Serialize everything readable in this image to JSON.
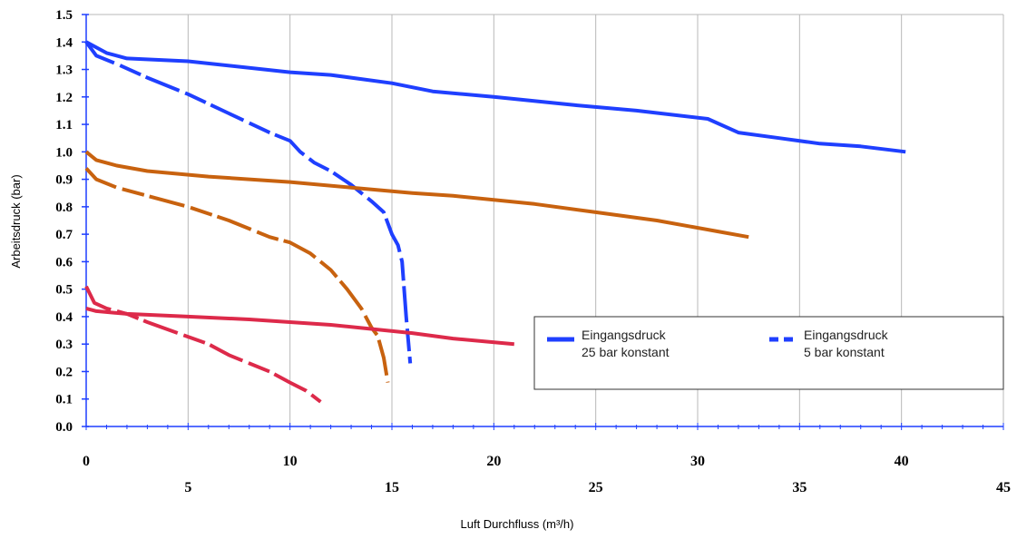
{
  "chart_data": {
    "type": "line",
    "xlabel": "Luft Durchfluss (m³/h)",
    "ylabel": "Arbeitsdruck (bar)",
    "xlim": [
      0,
      45
    ],
    "ylim": [
      0,
      1.5
    ],
    "y_ticks": [
      "0.0",
      "0.1",
      "0.2",
      "0.3",
      "0.4",
      "0.5",
      "0.6",
      "0.7",
      "0.8",
      "0.9",
      "1.0",
      "1.1",
      "1.2",
      "1.3",
      "1.4",
      "1.5"
    ],
    "x_ticks_row1": [
      "0",
      "10",
      "20",
      "30",
      "40"
    ],
    "x_ticks_row2": [
      "5",
      "15",
      "25",
      "35",
      "45"
    ],
    "grid": "vertical",
    "legend_position": "lower-right",
    "legend": [
      {
        "label_line1": "Eingangsdruck",
        "label_line2": "25 bar konstant",
        "style": "solid"
      },
      {
        "label_line1": "Eingangsdruck",
        "label_line2": "5 bar konstant",
        "style": "dashed"
      }
    ],
    "series": [
      {
        "color": "#1f3fff",
        "style": "solid",
        "x": [
          0,
          1,
          2,
          5,
          10,
          12,
          15,
          17,
          20,
          24,
          27,
          30.5,
          32,
          34,
          36,
          38,
          40.2
        ],
        "y": [
          1.4,
          1.36,
          1.34,
          1.33,
          1.29,
          1.28,
          1.25,
          1.22,
          1.2,
          1.17,
          1.15,
          1.12,
          1.07,
          1.05,
          1.03,
          1.02,
          1.0
        ]
      },
      {
        "color": "#1f3fff",
        "style": "dashed",
        "x": [
          0,
          0.5,
          1.5,
          3,
          5,
          7,
          9,
          10,
          10.5,
          11.2,
          12,
          13,
          14,
          14.6,
          15,
          15.3,
          15.5,
          15.7,
          15.9
        ],
        "y": [
          1.4,
          1.35,
          1.32,
          1.27,
          1.21,
          1.14,
          1.07,
          1.04,
          1.0,
          0.96,
          0.93,
          0.88,
          0.82,
          0.78,
          0.7,
          0.66,
          0.6,
          0.4,
          0.23
        ]
      },
      {
        "color": "#c8620f",
        "style": "solid",
        "x": [
          0,
          0.5,
          1.5,
          3,
          6,
          10,
          13,
          16,
          18,
          22,
          25,
          28,
          31,
          32.5
        ],
        "y": [
          1.0,
          0.97,
          0.95,
          0.93,
          0.91,
          0.89,
          0.87,
          0.85,
          0.84,
          0.81,
          0.78,
          0.75,
          0.71,
          0.69
        ]
      },
      {
        "color": "#c8620f",
        "style": "dashed",
        "x": [
          0,
          0.5,
          1.5,
          3,
          5,
          7,
          9,
          10,
          11,
          12,
          12.8,
          13.5,
          14,
          14.3,
          14.6,
          14.8
        ],
        "y": [
          0.94,
          0.9,
          0.87,
          0.84,
          0.8,
          0.75,
          0.69,
          0.67,
          0.63,
          0.57,
          0.5,
          0.43,
          0.36,
          0.33,
          0.25,
          0.16
        ]
      },
      {
        "color": "#dd2a4a",
        "style": "solid",
        "x": [
          0,
          0.5,
          2,
          5,
          8,
          12,
          16,
          18,
          21
        ],
        "y": [
          0.43,
          0.42,
          0.41,
          0.4,
          0.39,
          0.37,
          0.34,
          0.32,
          0.3
        ]
      },
      {
        "color": "#dd2a4a",
        "style": "dashed",
        "x": [
          0,
          0.4,
          1,
          2,
          3,
          4.5,
          6,
          7,
          8,
          9,
          10,
          10.8,
          11.5
        ],
        "y": [
          0.51,
          0.45,
          0.43,
          0.41,
          0.38,
          0.34,
          0.3,
          0.26,
          0.23,
          0.2,
          0.16,
          0.13,
          0.09
        ]
      }
    ]
  }
}
